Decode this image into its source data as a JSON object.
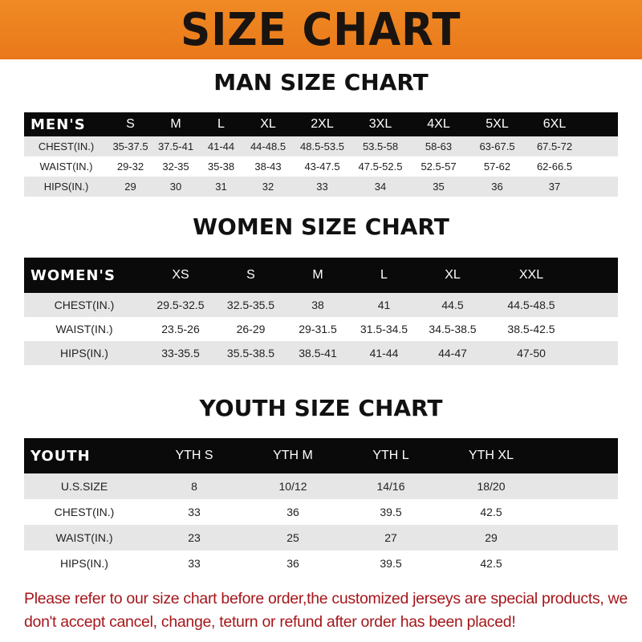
{
  "banner": "SIZE CHART",
  "men": {
    "title": "MAN SIZE CHART",
    "header": [
      "MEN'S",
      "S",
      "M",
      "L",
      "XL",
      "2XL",
      "3XL",
      "4XL",
      "5XL",
      "6XL"
    ],
    "rows": [
      [
        "CHEST(IN.)",
        "35-37.5",
        "37.5-41",
        "41-44",
        "44-48.5",
        "48.5-53.5",
        "53.5-58",
        "58-63",
        "63-67.5",
        "67.5-72"
      ],
      [
        "WAIST(IN.)",
        "29-32",
        "32-35",
        "35-38",
        "38-43",
        "43-47.5",
        "47.5-52.5",
        "52.5-57",
        "57-62",
        "62-66.5"
      ],
      [
        "HIPS(IN.)",
        "29",
        "30",
        "31",
        "32",
        "33",
        "34",
        "35",
        "36",
        "37"
      ]
    ]
  },
  "women": {
    "title": "WOMEN SIZE CHART",
    "header": [
      "WOMEN'S",
      "XS",
      "S",
      "M",
      "L",
      "XL",
      "XXL"
    ],
    "rows": [
      [
        "CHEST(IN.)",
        "29.5-32.5",
        "32.5-35.5",
        "38",
        "41",
        "44.5",
        "44.5-48.5"
      ],
      [
        "WAIST(IN.)",
        "23.5-26",
        "26-29",
        "29-31.5",
        "31.5-34.5",
        "34.5-38.5",
        "38.5-42.5"
      ],
      [
        "HIPS(IN.)",
        "33-35.5",
        "35.5-38.5",
        "38.5-41",
        "41-44",
        "44-47",
        "47-50"
      ]
    ]
  },
  "youth": {
    "title": "YOUTH SIZE CHART",
    "header": [
      "YOUTH",
      "YTH S",
      "YTH M",
      "YTH L",
      "YTH XL"
    ],
    "rows": [
      [
        "U.S.SIZE",
        "8",
        "10/12",
        "14/16",
        "18/20"
      ],
      [
        "CHEST(IN.)",
        "33",
        "36",
        "39.5",
        "42.5"
      ],
      [
        "WAIST(IN.)",
        "23",
        "25",
        "27",
        "29"
      ],
      [
        "HIPS(IN.)",
        "33",
        "36",
        "39.5",
        "42.5"
      ]
    ]
  },
  "note": "Please refer to our size chart before order,the customized jerseys are special products, we don't accept cancel, change, teturn or refund after order has been placed!",
  "colors": {
    "banner": "#ee8320",
    "header_row": "#0a0a0a",
    "stripe": "#e6e6e6",
    "note": "#a5161b"
  }
}
